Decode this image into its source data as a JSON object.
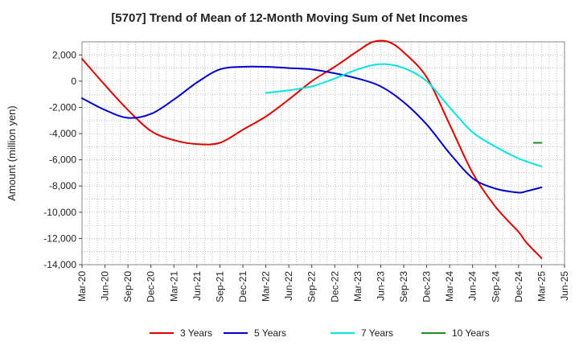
{
  "chart_data": {
    "type": "line",
    "title": "[5707]  Trend of Mean of 12-Month Moving Sum of Net Incomes",
    "xlabel": "",
    "ylabel": "Amount (million yen)",
    "ylim": [
      -14000,
      3000
    ],
    "yticks": [
      2000,
      0,
      -2000,
      -4000,
      -6000,
      -8000,
      -10000,
      -12000,
      -14000
    ],
    "ytick_labels": [
      "2,000",
      "0",
      "-2,000",
      "-4,000",
      "-6,000",
      "-8,000",
      "-10,000",
      "-12,000",
      "-14,000"
    ],
    "xticks": [
      "Mar-20",
      "Jun-20",
      "Sep-20",
      "Dec-20",
      "Mar-21",
      "Jun-21",
      "Sep-21",
      "Dec-21",
      "Mar-22",
      "Jun-22",
      "Sep-22",
      "Dec-22",
      "Mar-23",
      "Jun-23",
      "Sep-23",
      "Dec-23",
      "Mar-24",
      "Jun-24",
      "Sep-24",
      "Dec-24",
      "Mar-25",
      "Jun-25"
    ],
    "grid": true,
    "legend_position": "bottom",
    "series": [
      {
        "name": "3 Years",
        "color": "#e00000",
        "points": [
          [
            "Mar-20",
            1700
          ],
          [
            "Jun-20",
            -300
          ],
          [
            "Sep-20",
            -2200
          ],
          [
            "Dec-20",
            -3800
          ],
          [
            "Mar-21",
            -4500
          ],
          [
            "Jun-21",
            -4800
          ],
          [
            "Sep-21",
            -4700
          ],
          [
            "Dec-21",
            -3700
          ],
          [
            "Mar-22",
            -2700
          ],
          [
            "Jun-22",
            -1400
          ],
          [
            "Sep-22",
            0
          ],
          [
            "Dec-22",
            1100
          ],
          [
            "Mar-23",
            2300
          ],
          [
            "May-23",
            3000
          ],
          [
            "Jul-23",
            3000
          ],
          [
            "Sep-23",
            2200
          ],
          [
            "Dec-23",
            300
          ],
          [
            "Mar-24",
            -3300
          ],
          [
            "Jun-24",
            -7000
          ],
          [
            "Sep-24",
            -9600
          ],
          [
            "Dec-24",
            -11500
          ],
          [
            "Jan-25",
            -12300
          ],
          [
            "Mar-25",
            -13500
          ]
        ]
      },
      {
        "name": "5 Years",
        "color": "#0000cc",
        "points": [
          [
            "Mar-20",
            -1300
          ],
          [
            "Jun-20",
            -2200
          ],
          [
            "Sep-20",
            -2800
          ],
          [
            "Dec-20",
            -2500
          ],
          [
            "Mar-21",
            -1400
          ],
          [
            "Jun-21",
            -100
          ],
          [
            "Sep-21",
            900
          ],
          [
            "Dec-21",
            1100
          ],
          [
            "Mar-22",
            1100
          ],
          [
            "Jun-22",
            1000
          ],
          [
            "Sep-22",
            900
          ],
          [
            "Dec-22",
            600
          ],
          [
            "Mar-23",
            200
          ],
          [
            "Jun-23",
            -400
          ],
          [
            "Sep-23",
            -1600
          ],
          [
            "Dec-23",
            -3300
          ],
          [
            "Mar-24",
            -5500
          ],
          [
            "Jun-24",
            -7400
          ],
          [
            "Sep-24",
            -8200
          ],
          [
            "Dec-24",
            -8500
          ],
          [
            "Jan-25",
            -8400
          ],
          [
            "Mar-25",
            -8100
          ]
        ]
      },
      {
        "name": "7 Years",
        "color": "#00e5e5",
        "points": [
          [
            "Mar-22",
            -900
          ],
          [
            "Jun-22",
            -700
          ],
          [
            "Sep-22",
            -400
          ],
          [
            "Dec-22",
            200
          ],
          [
            "Mar-23",
            900
          ],
          [
            "Jun-23",
            1300
          ],
          [
            "Sep-23",
            1000
          ],
          [
            "Dec-23",
            0
          ],
          [
            "Mar-24",
            -2000
          ],
          [
            "Jun-24",
            -3900
          ],
          [
            "Sep-24",
            -5000
          ],
          [
            "Dec-24",
            -5900
          ],
          [
            "Mar-25",
            -6500
          ]
        ]
      },
      {
        "name": "10 Years",
        "color": "#228b22",
        "points": [
          [
            "Feb-25",
            -4700
          ],
          [
            "Mar-25",
            -4700
          ]
        ]
      }
    ]
  }
}
